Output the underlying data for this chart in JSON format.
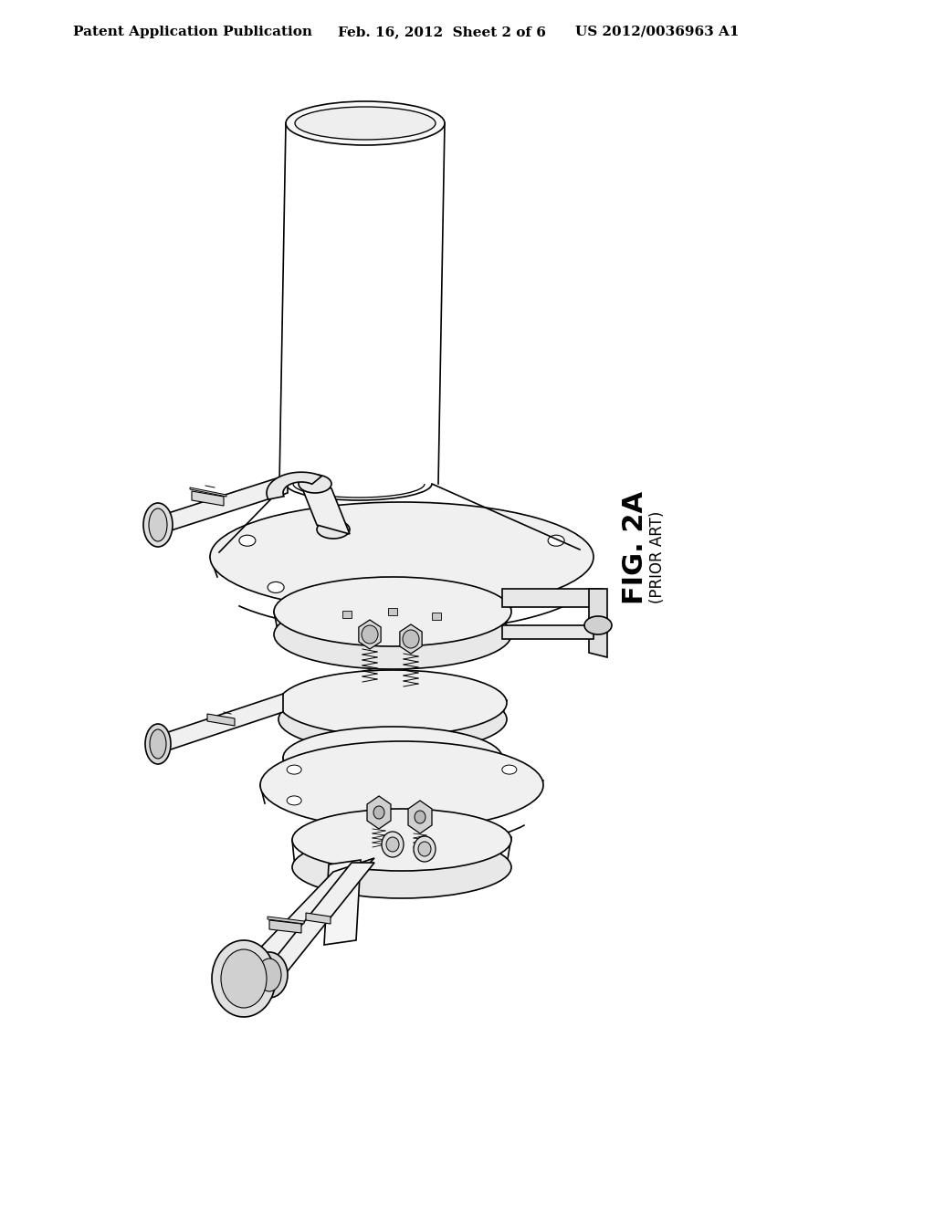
{
  "background_color": "#ffffff",
  "header_left": "Patent Application Publication",
  "header_center": "Feb. 16, 2012  Sheet 2 of 6",
  "header_right": "US 2012/0036963 A1",
  "header_fontsize": 11,
  "fig_label": "FIG. 2A",
  "fig_sublabel": "(PRIOR ART)",
  "line_color": "#000000",
  "line_width": 1.2
}
